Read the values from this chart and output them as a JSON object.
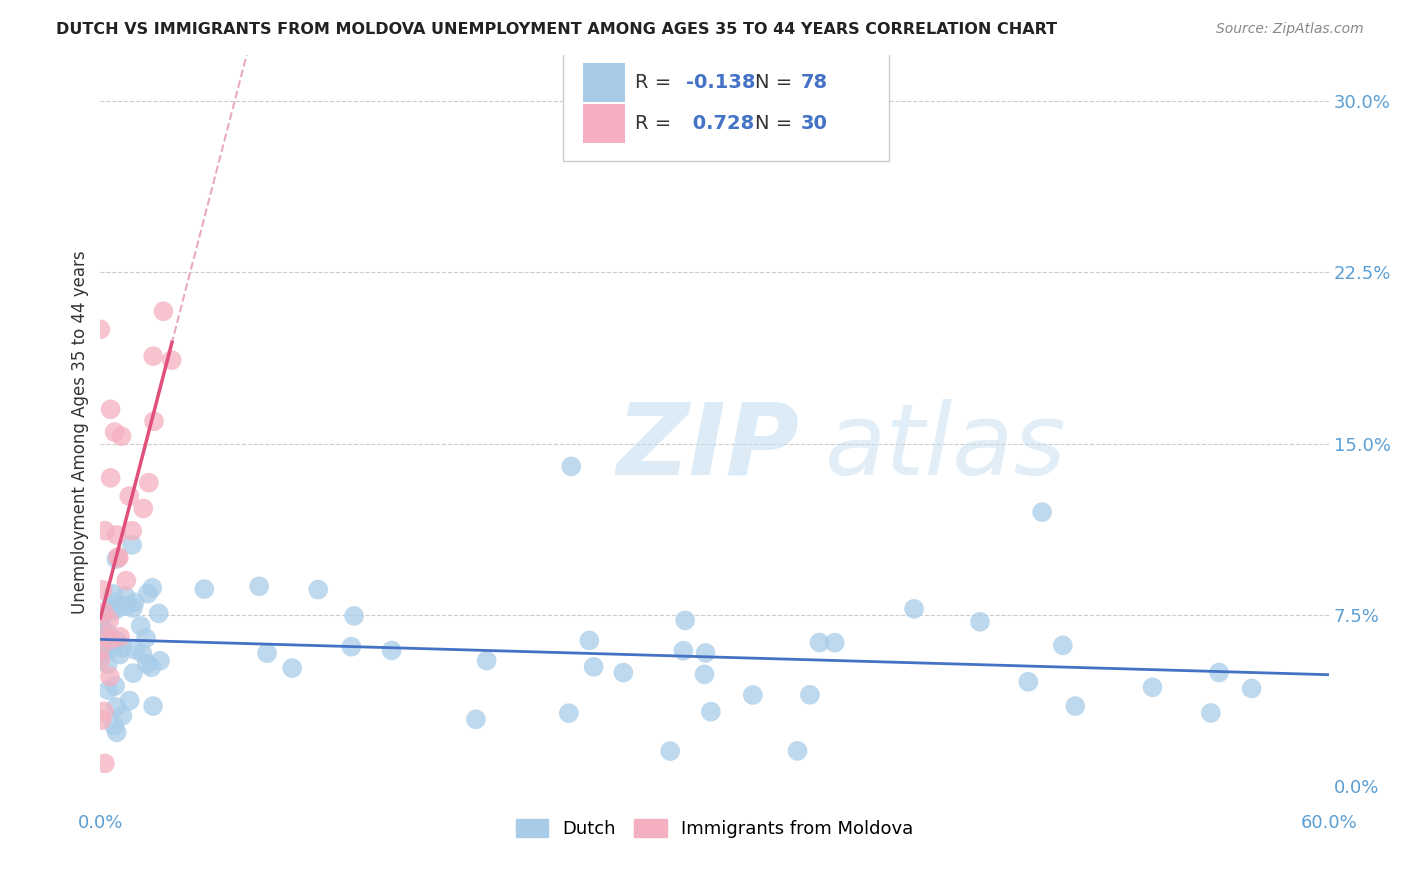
{
  "title": "DUTCH VS IMMIGRANTS FROM MOLDOVA UNEMPLOYMENT AMONG AGES 35 TO 44 YEARS CORRELATION CHART",
  "source": "Source: ZipAtlas.com",
  "ylabel": "Unemployment Among Ages 35 to 44 years",
  "xlim": [
    0.0,
    0.6
  ],
  "ylim": [
    -0.01,
    0.32
  ],
  "dutch_color": "#a8cce8",
  "moldova_color": "#f4afc0",
  "dutch_line_color": "#4472c4",
  "moldova_line_color": "#e0507a",
  "moldova_line_dashed_color": "#e8a0b8",
  "R_dutch": -0.138,
  "N_dutch": 78,
  "R_moldova": 0.728,
  "N_moldova": 30,
  "watermark_zip": "ZIP",
  "watermark_atlas": "atlas",
  "background_color": "#ffffff"
}
